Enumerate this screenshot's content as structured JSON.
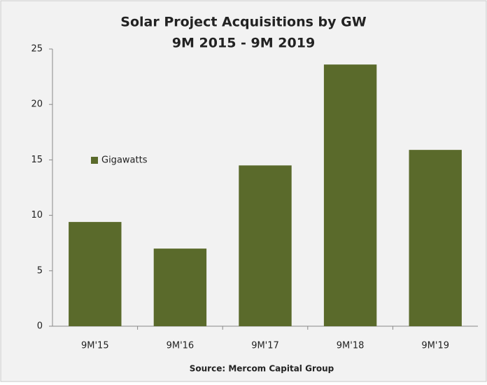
{
  "chart_data": {
    "type": "bar",
    "title": "Solar Project Acquisitions by GW",
    "subtitle": "9M 2015 - 9M 2019",
    "source": "Source: Mercom Capital Group",
    "categories": [
      "9M'15",
      "9M'16",
      "9M'17",
      "9M'18",
      "9M'19"
    ],
    "series": [
      {
        "name": "Gigawatts",
        "color": "#5a6a2b",
        "values": [
          9.4,
          7.0,
          14.5,
          23.6,
          15.9
        ]
      }
    ],
    "ylim": [
      0,
      25
    ],
    "yticks": [
      0,
      5,
      10,
      15,
      20,
      25
    ],
    "grid": false,
    "legend": "left"
  }
}
